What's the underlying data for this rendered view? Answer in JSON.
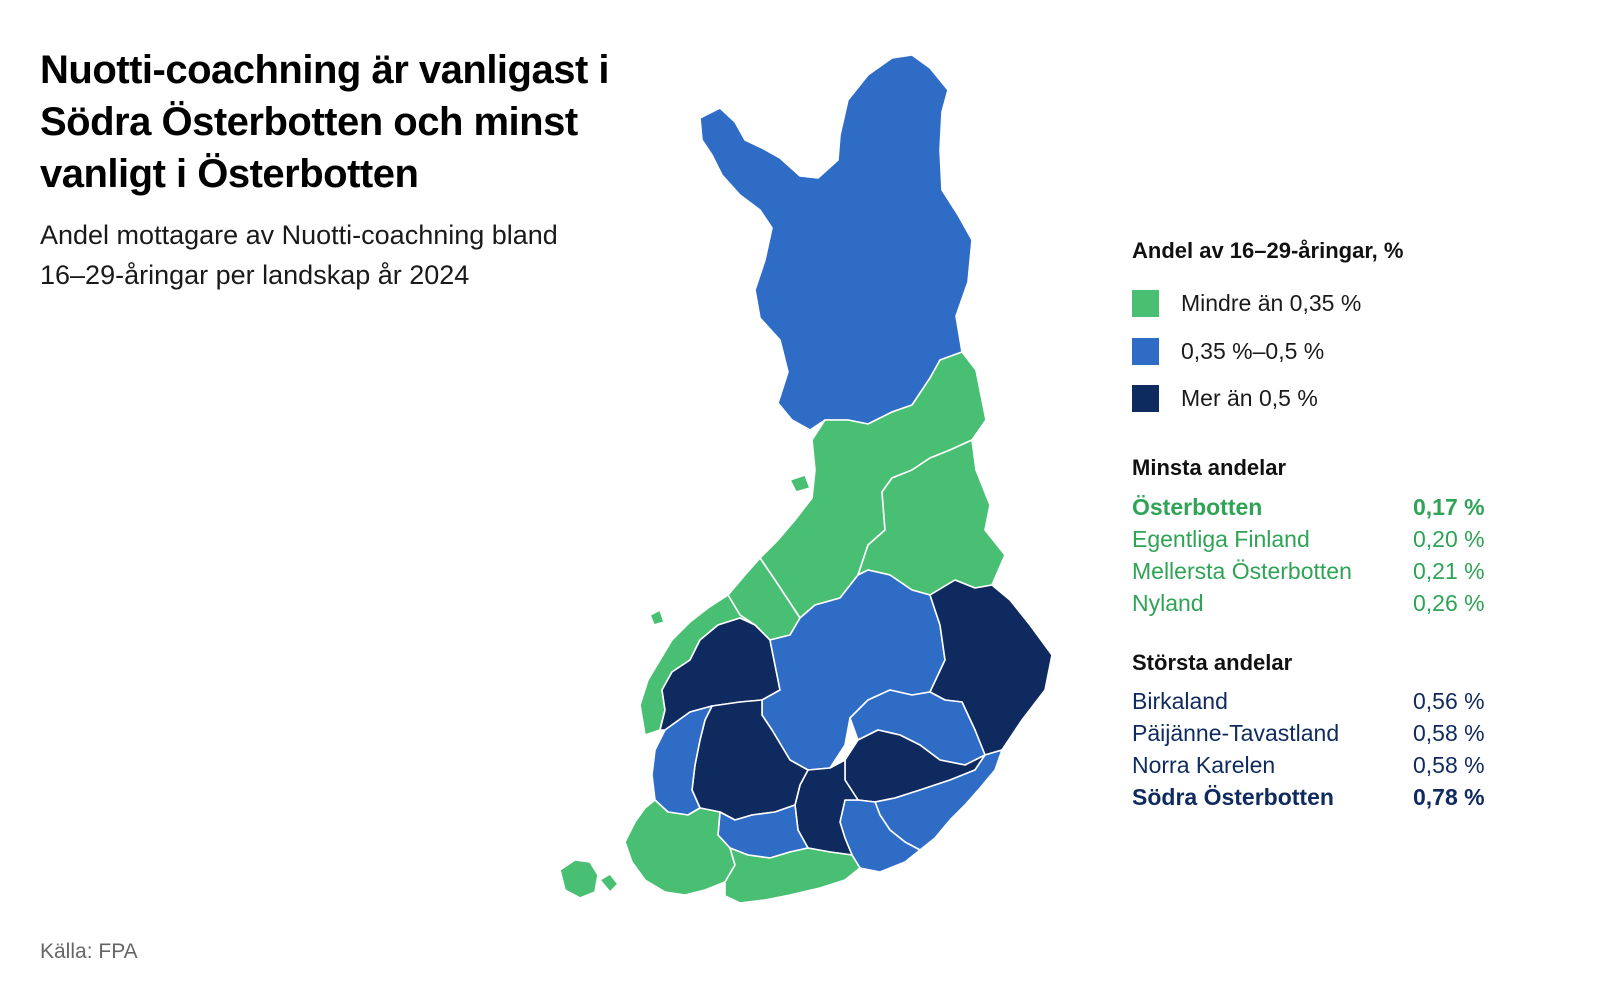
{
  "title": "Nuotti-coachning är vanligast i Södra Österbotten och minst vanligt i Österbotten",
  "subtitle": "Andel mottagare av Nuotti-coachning bland 16–29-åringar per landskap år 2024",
  "source": "Källa: FPA",
  "legend": {
    "title": "Andel av 16–29-åringar, %",
    "items": [
      {
        "label": "Mindre än 0,35 %",
        "color": "#49bf73"
      },
      {
        "label": "0,35 %–0,5 %",
        "color": "#2e6cc6"
      },
      {
        "label": "Mer än 0,5 %",
        "color": "#0f2a5e"
      }
    ]
  },
  "smallest": {
    "title": "Minsta andelar",
    "rows": [
      {
        "name": "Österbotten",
        "value": "0,17 %"
      },
      {
        "name": "Egentliga Finland",
        "value": "0,20 %"
      },
      {
        "name": "Mellersta Österbotten",
        "value": "0,21 %"
      },
      {
        "name": "Nyland",
        "value": "0,26 %"
      }
    ]
  },
  "largest": {
    "title": "Största andelar",
    "rows": [
      {
        "name": "Birkaland",
        "value": "0,56 %"
      },
      {
        "name": "Päijänne-Tavastland",
        "value": "0,58 %"
      },
      {
        "name": "Norra Karelen",
        "value": "0,58 %"
      },
      {
        "name": "Södra Österbotten",
        "value": "0,78 %"
      }
    ]
  },
  "colors": {
    "low": "#49bf73",
    "mid": "#2e6cc6",
    "high": "#0f2a5e",
    "low_text": "#2fa356",
    "high_text": "#0f2a5e"
  }
}
